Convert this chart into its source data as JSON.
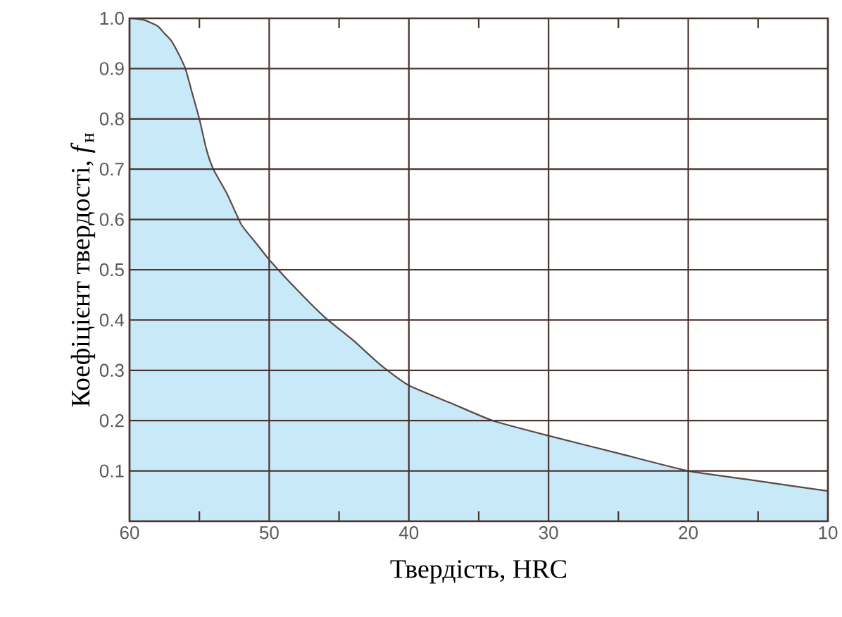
{
  "chart_data": {
    "type": "area",
    "xlabel": "Твердість, HRC",
    "ylabel": "Коефіцієнт твердості, *f*$_{н}$",
    "xlim": [
      60,
      10
    ],
    "ylim": [
      0,
      1.0
    ],
    "xticks": [
      60,
      {
        "value": 55,
        "label": null
      },
      50,
      {
        "value": 45,
        "label": null
      },
      40,
      {
        "value": 35,
        "label": null
      },
      30,
      {
        "value": 25,
        "label": null
      },
      20,
      {
        "value": 15,
        "label": null
      },
      10
    ],
    "yticks": [
      0.1,
      0.2,
      0.3,
      0.4,
      0.5,
      0.6,
      0.7,
      0.8,
      0.9,
      "1.0"
    ],
    "grid": true,
    "series": [
      {
        "color": "#c8e9f8",
        "x": [
          60,
          59,
          58,
          57.5,
          57,
          56.5,
          56,
          55.5,
          55,
          54.5,
          54,
          53,
          52,
          51,
          50,
          48,
          46,
          44,
          42,
          40,
          37,
          34,
          30,
          25,
          20,
          15,
          10
        ],
        "values": [
          1.0,
          0.997,
          0.985,
          0.97,
          0.955,
          0.93,
          0.9,
          0.85,
          0.8,
          0.74,
          0.7,
          0.65,
          0.59,
          0.555,
          0.52,
          0.46,
          0.405,
          0.36,
          0.31,
          0.27,
          0.235,
          0.2,
          0.17,
          0.135,
          0.1,
          0.08,
          0.06
        ]
      }
    ]
  }
}
